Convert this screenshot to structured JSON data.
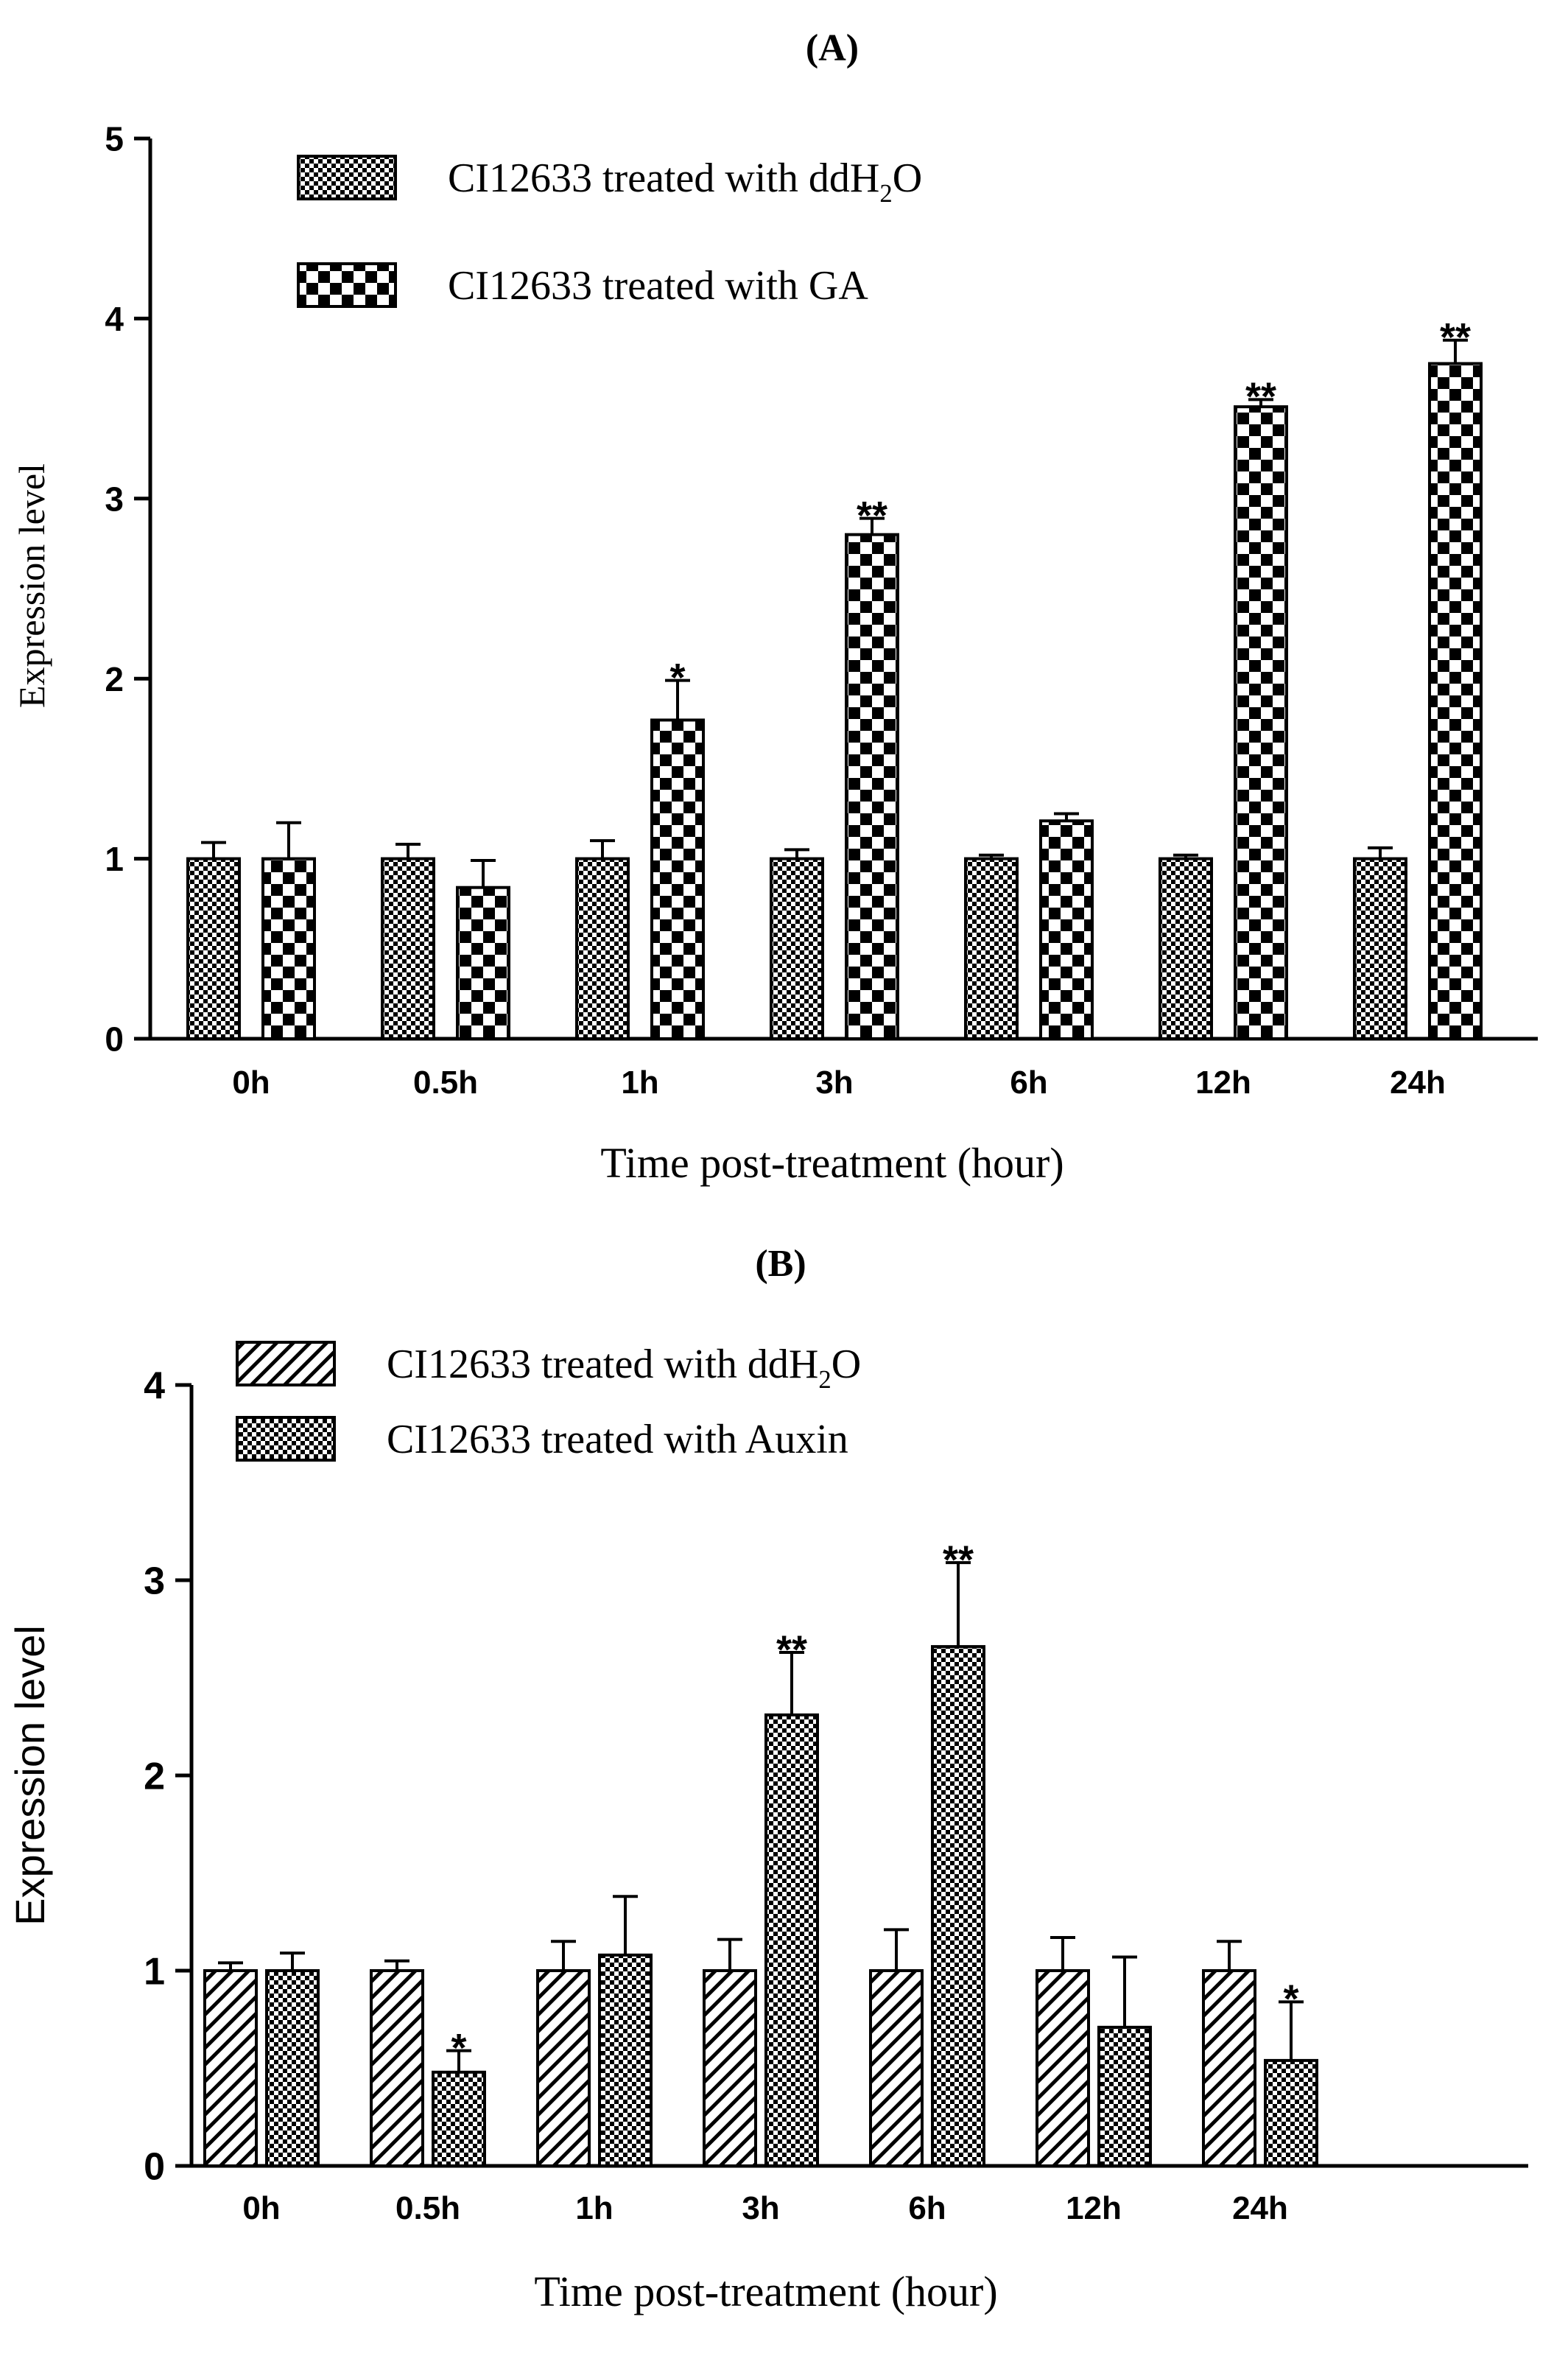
{
  "chart_data": [
    {
      "type": "bar",
      "panel_label": "(A)",
      "title": "",
      "xlabel": "Time post-treatment (hour)",
      "ylabel": "Expression level",
      "ylim": [
        0,
        5
      ],
      "yticks": [
        "0",
        "1",
        "2",
        "3",
        "4",
        "5"
      ],
      "categories": [
        "0h",
        "0.5h",
        "1h",
        "3h",
        "6h",
        "12h",
        "24h"
      ],
      "legend_position": "top-left",
      "legend": [
        {
          "prefix": "CI12633 treated with ddH",
          "sub": "2",
          "suffix": "O"
        },
        {
          "prefix": "CI12633 treated with GA",
          "sub": "",
          "suffix": ""
        }
      ],
      "series": [
        {
          "name": "CI12633 treated with ddH2O",
          "pattern": "fine-check",
          "values": [
            1.0,
            1.0,
            1.0,
            1.0,
            1.0,
            1.0,
            1.0
          ],
          "errors": [
            0.09,
            0.08,
            0.1,
            0.05,
            0.02,
            0.02,
            0.06
          ],
          "significance": [
            "",
            "",
            "",
            "",
            "",
            "",
            ""
          ]
        },
        {
          "name": "CI12633 treated with GA",
          "pattern": "coarse-check",
          "values": [
            1.0,
            0.84,
            1.77,
            2.8,
            1.21,
            3.51,
            3.75
          ],
          "errors": [
            0.2,
            0.15,
            0.22,
            0.09,
            0.04,
            0.04,
            0.13
          ],
          "significance": [
            "",
            "",
            "*",
            "**",
            "",
            "**",
            "**"
          ]
        }
      ]
    },
    {
      "type": "bar",
      "panel_label": "(B)",
      "title": "",
      "xlabel": "Time post-treatment (hour)",
      "ylabel": "Expression level",
      "ylim": [
        0,
        4
      ],
      "yticks": [
        "0",
        "1",
        "2",
        "3",
        "4"
      ],
      "categories": [
        "0h",
        "0.5h",
        "1h",
        "3h",
        "6h",
        "12h",
        "24h"
      ],
      "legend_position": "top-left",
      "legend": [
        {
          "prefix": "CI12633 treated with ddH",
          "sub": "2",
          "suffix": "O"
        },
        {
          "prefix": "CI12633 treated with Auxin",
          "sub": "",
          "suffix": ""
        }
      ],
      "series": [
        {
          "name": "CI12633 treated with ddH2O",
          "pattern": "hatch",
          "values": [
            1.0,
            1.0,
            1.0,
            1.0,
            1.0,
            1.0,
            1.0
          ],
          "errors": [
            0.04,
            0.05,
            0.15,
            0.16,
            0.21,
            0.17,
            0.15
          ],
          "significance": [
            "",
            "",
            "",
            "",
            "",
            "",
            ""
          ]
        },
        {
          "name": "CI12633 treated with Auxin",
          "pattern": "fine-check",
          "values": [
            1.0,
            0.48,
            1.08,
            2.31,
            2.66,
            0.71,
            0.54
          ],
          "errors": [
            0.09,
            0.11,
            0.3,
            0.32,
            0.43,
            0.36,
            0.3
          ],
          "significance": [
            "",
            "*",
            "",
            "**",
            "**",
            "",
            "*"
          ]
        }
      ]
    }
  ]
}
